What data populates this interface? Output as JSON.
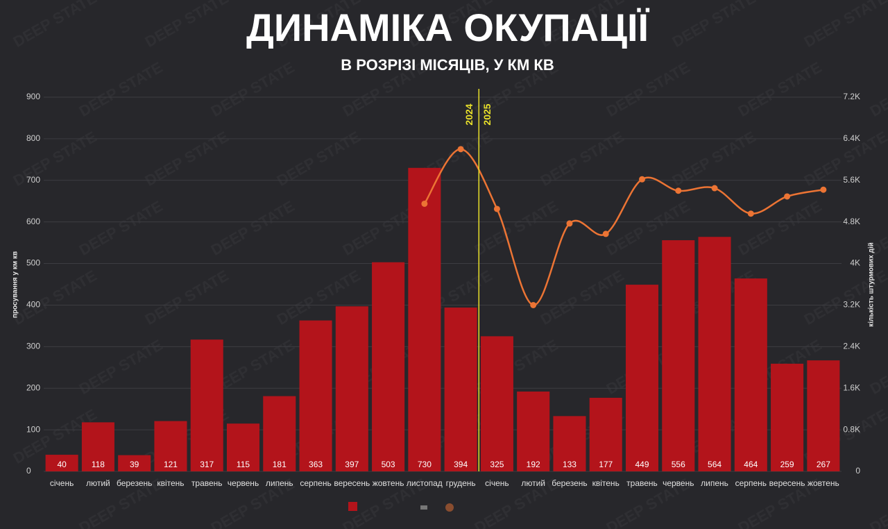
{
  "chart_data": {
    "type": "bar-line",
    "title": "ДИНАМІКА ОКУПАЦІЇ",
    "subtitle": "В РОЗРІЗІ МІСЯЦІВ, У КМ КВ",
    "watermark": "DEEP STATE",
    "ylabel": "просування у км кв",
    "y2label": "кількість штурмових дій",
    "categories": [
      "січень",
      "лютий",
      "березень",
      "квітень",
      "травень",
      "червень",
      "липень",
      "серпень",
      "вересень",
      "жовтень",
      "листопад",
      "грудень",
      "січень",
      "лютий",
      "березень",
      "квітень",
      "травень",
      "червень",
      "липень",
      "серпень",
      "вересень",
      "жовтень"
    ],
    "series": [
      {
        "color": "#b3141b",
        "values": [
          40,
          118,
          39,
          121,
          317,
          115,
          181,
          363,
          397,
          503,
          730,
          394,
          325,
          192,
          133,
          177,
          449,
          556,
          564,
          464,
          259,
          267
        ]
      },
      {
        "color": "#ec7434",
        "axis": "y2",
        "values": [
          null,
          null,
          null,
          null,
          null,
          null,
          null,
          null,
          null,
          null,
          5150,
          6200,
          5050,
          3200,
          4770,
          4570,
          5620,
          5400,
          5450,
          4960,
          5290,
          5420
        ]
      }
    ],
    "annotations": [
      "2024",
      "2025"
    ],
    "ylim": [
      0,
      900
    ],
    "yticks": [
      0,
      100,
      200,
      300,
      400,
      500,
      600,
      700,
      800,
      900
    ],
    "y2lim": [
      0,
      7200
    ],
    "y2ticks": [
      0,
      {
        "value": 800,
        "label": "0.8K"
      },
      {
        "value": 1600,
        "label": "1.6K"
      },
      {
        "value": 2400,
        "label": "2.4K"
      },
      {
        "value": 3200,
        "label": "3.2K"
      },
      {
        "value": 4000,
        "label": "4K"
      },
      {
        "value": 4800,
        "label": "4.8K"
      },
      {
        "value": 5600,
        "label": "5.6K"
      },
      {
        "value": 6400,
        "label": "6.4K"
      },
      {
        "value": 7200,
        "label": "7.2K"
      }
    ],
    "grid": true
  }
}
